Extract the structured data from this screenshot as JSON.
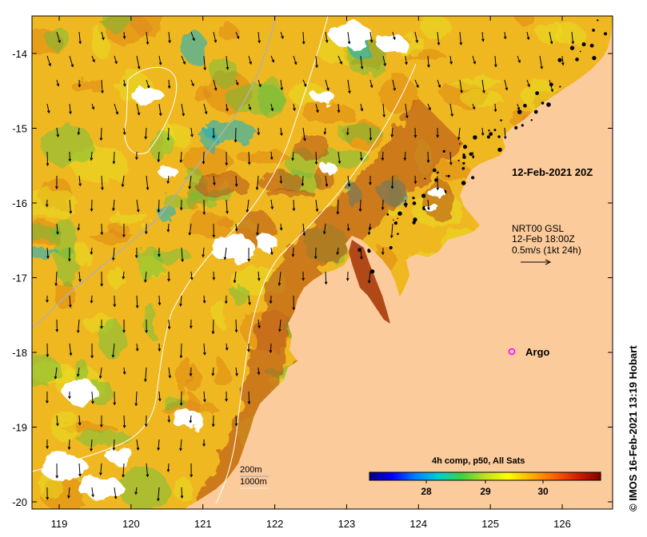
{
  "map": {
    "timestamp_label": "12-Feb-2021 20Z",
    "current_legend": {
      "line1": "NRT00 GSL",
      "line2": "12-Feb 18:00Z",
      "line3": "0.5m/s (1kt 24h)"
    },
    "argo_label": "Argo",
    "depth_legend": {
      "shallow": "200m",
      "deep": "1000m"
    },
    "credit": "© IMOS 16-Feb-2021 13:19 Hobart",
    "x_ticks": [
      "119",
      "120",
      "121",
      "122",
      "123",
      "124",
      "125",
      "126"
    ],
    "y_ticks": [
      "-14",
      "-15",
      "-16",
      "-17",
      "-18",
      "-19",
      "-20"
    ],
    "colors": {
      "land": "#fccb9b",
      "no_data": "#ffffff",
      "warm_dark": "#b04818",
      "warm": "#e08a18",
      "mid": "#f0b820",
      "yellow": "#e8e020",
      "green": "#60c040",
      "cyan": "#20b0c0",
      "argo_marker": "#ff00ff",
      "isobath_200": "#b0b0b0",
      "isobath_1000": "#ffffff"
    }
  },
  "colorbar": {
    "title": "4h comp, p50, All Sats",
    "ticks": [
      "28",
      "29",
      "30"
    ],
    "stops": [
      "#00007f",
      "#0000ff",
      "#0080ff",
      "#00d0d0",
      "#40d040",
      "#c0e020",
      "#ffff00",
      "#ffb000",
      "#ff6000",
      "#d02000",
      "#800000"
    ]
  }
}
